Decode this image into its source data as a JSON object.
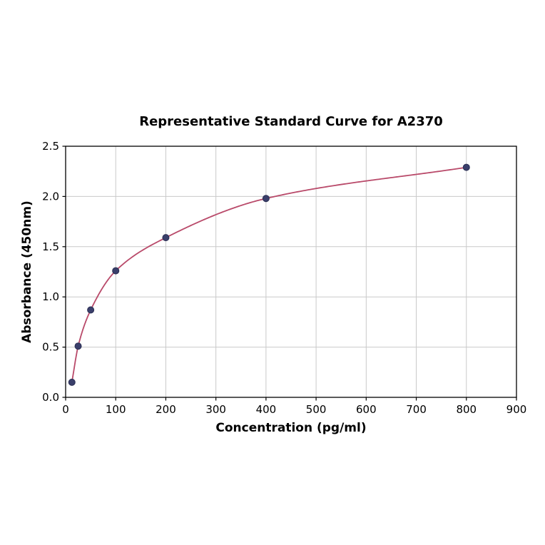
{
  "chart_data": {
    "type": "line",
    "title": "Representative Standard Curve for A2370",
    "xlabel": "Concentration (pg/ml)",
    "ylabel": "Absorbance (450nm)",
    "x": [
      12.5,
      25,
      50,
      100,
      200,
      400,
      800
    ],
    "y": [
      0.15,
      0.51,
      0.87,
      1.26,
      1.59,
      1.98,
      2.29
    ],
    "xlim": [
      0,
      900
    ],
    "ylim": [
      0,
      2.5
    ],
    "xticks": [
      0,
      100,
      200,
      300,
      400,
      500,
      600,
      700,
      800,
      900
    ],
    "xtick_labels": [
      "0",
      "100",
      "200",
      "300",
      "400",
      "500",
      "600",
      "700",
      "800",
      "900"
    ],
    "yticks": [
      0,
      0.5,
      1,
      1.5,
      2,
      2.5
    ],
    "ytick_labels": [
      "0.0",
      "0.5",
      "1.0",
      "1.5",
      "2.0",
      "2.5"
    ],
    "grid": true,
    "legend_position": "none",
    "colors": {
      "line": "#b94a6a",
      "marker_fill": "#3a3f6b",
      "marker_edge": "#2a2e52",
      "grid": "#c9c9c9",
      "axis": "#000000",
      "text": "#000000",
      "background": "#ffffff"
    }
  }
}
